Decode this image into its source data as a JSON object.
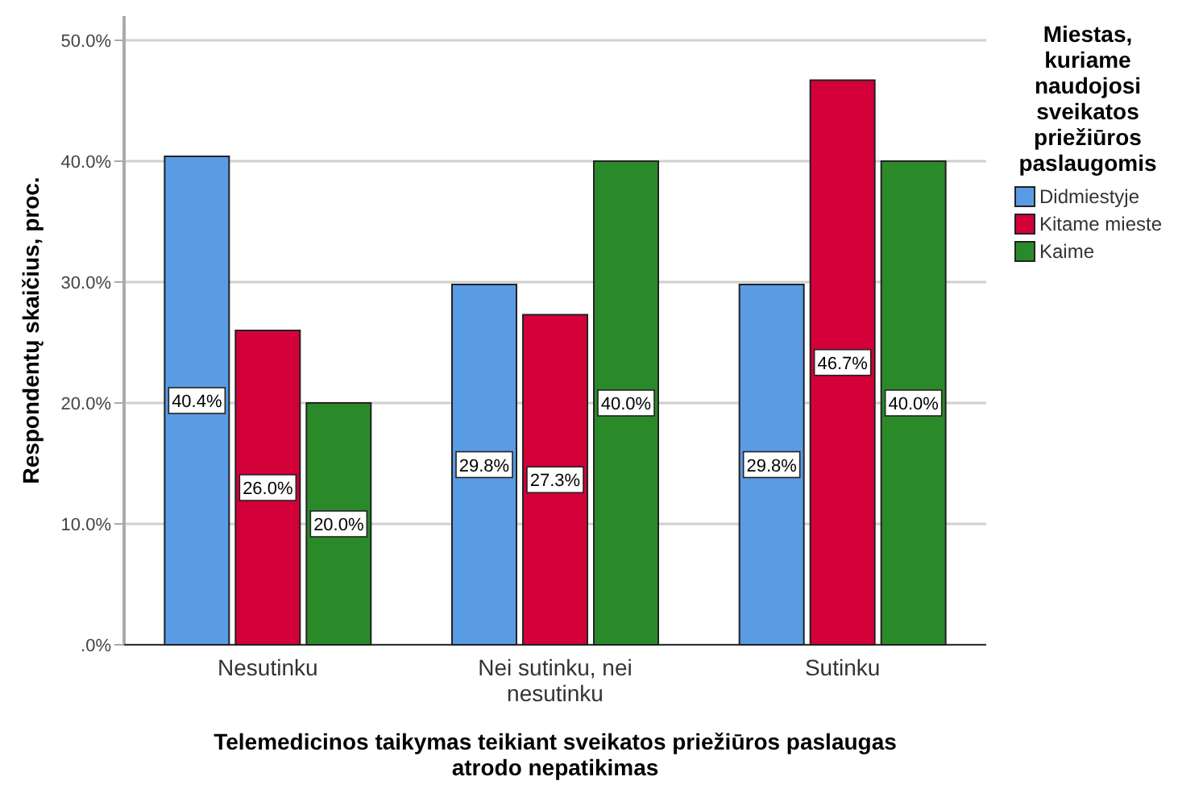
{
  "chart_data": {
    "type": "bar",
    "xlabel": "Telemedicinos taikymas teikiant sveikatos priežiūros paslaugas atrodo nepatikimas",
    "ylabel": "Respondentų skaičius, proc.",
    "legend_title": "Miestas, kuriame naudojosi sveikatos priežiūros paslaugomis",
    "categories": [
      "Nesutinku",
      "Nei sutinku, nei nesutinku",
      "Sutinku"
    ],
    "series": [
      {
        "name": "Didmiestyje",
        "color": "#5a9be6",
        "values": [
          40.4,
          29.8,
          29.8
        ],
        "value_labels": [
          "40.4%",
          "29.8%",
          "29.8%"
        ]
      },
      {
        "name": "Kitame mieste",
        "color": "#d3003a",
        "values": [
          26.0,
          27.3,
          46.7
        ],
        "value_labels": [
          "26.0%",
          "27.3%",
          "46.7%"
        ]
      },
      {
        "name": "Kaime",
        "color": "#2a8a2a",
        "values": [
          20.0,
          40.0,
          40.0
        ],
        "value_labels": [
          "20.0%",
          "40.0%",
          "40.0%"
        ]
      }
    ],
    "ylim": [
      0,
      52
    ],
    "yticks": [
      {
        "value": 0,
        "label": ".0%"
      },
      {
        "value": 10,
        "label": "10.0%"
      },
      {
        "value": 20,
        "label": "20.0%"
      },
      {
        "value": 30,
        "label": "30.0%"
      },
      {
        "value": 40,
        "label": "40.0%"
      },
      {
        "value": 50,
        "label": "50.0%"
      }
    ],
    "grid": "y",
    "legend": "top right"
  }
}
